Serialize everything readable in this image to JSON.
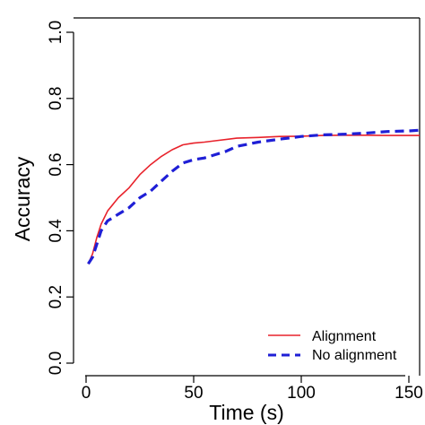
{
  "chart_data": {
    "type": "line",
    "xlabel": "Time (s)",
    "ylabel": "Accuracy",
    "xlim": [
      0,
      155
    ],
    "ylim": [
      0,
      1.0
    ],
    "xticks": [
      0,
      50,
      100,
      150
    ],
    "yticks": [
      0.0,
      0.2,
      0.4,
      0.6,
      0.8,
      1.0
    ],
    "xtick_labels": [
      "0",
      "50",
      "100",
      "150"
    ],
    "ytick_labels": [
      "0.0",
      "0.2",
      "0.4",
      "0.6",
      "0.8",
      "1.0"
    ],
    "grid": false,
    "legend_position": "bottom-right",
    "series": [
      {
        "name": "Alignment",
        "color": "#e8222b",
        "style": "solid",
        "x": [
          1,
          3,
          5,
          7,
          10,
          15,
          20,
          25,
          30,
          35,
          40,
          45,
          50,
          55,
          60,
          70,
          80,
          90,
          100,
          110,
          120,
          130,
          140,
          150,
          155
        ],
        "y": [
          0.3,
          0.33,
          0.38,
          0.42,
          0.46,
          0.5,
          0.53,
          0.57,
          0.6,
          0.625,
          0.645,
          0.66,
          0.665,
          0.668,
          0.672,
          0.68,
          0.682,
          0.685,
          0.686,
          0.688,
          0.689,
          0.689,
          0.688,
          0.688,
          0.688
        ]
      },
      {
        "name": "No alignment",
        "color": "#1f1fd6",
        "style": "dashed",
        "x": [
          1,
          3,
          5,
          7,
          10,
          15,
          20,
          25,
          30,
          35,
          40,
          45,
          50,
          55,
          60,
          65,
          70,
          80,
          90,
          100,
          110,
          120,
          130,
          140,
          150,
          155
        ],
        "y": [
          0.3,
          0.32,
          0.36,
          0.4,
          0.43,
          0.45,
          0.47,
          0.5,
          0.52,
          0.55,
          0.58,
          0.605,
          0.615,
          0.62,
          0.63,
          0.64,
          0.655,
          0.668,
          0.677,
          0.685,
          0.69,
          0.692,
          0.695,
          0.7,
          0.702,
          0.704
        ]
      }
    ]
  }
}
